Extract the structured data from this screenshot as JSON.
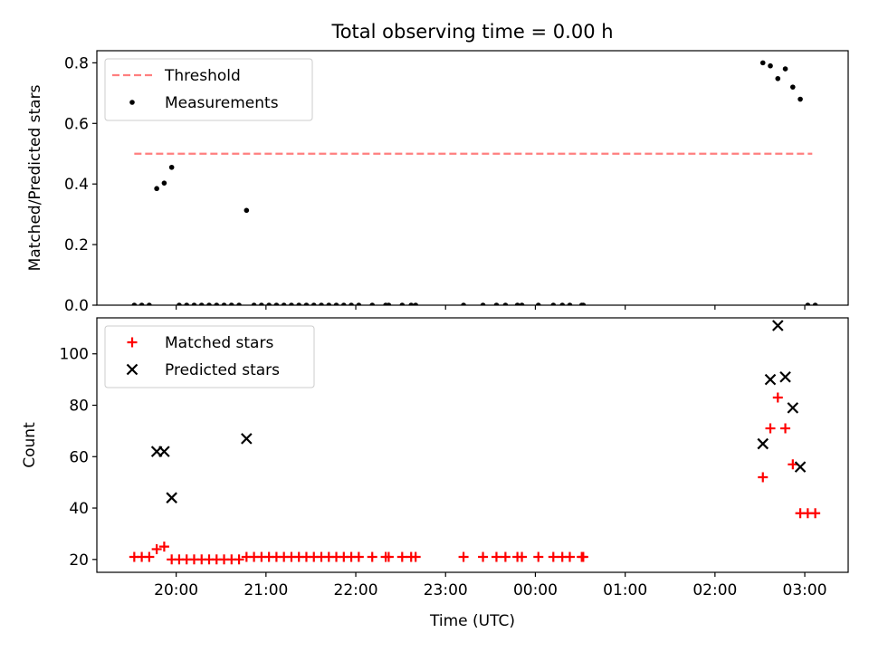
{
  "chart_data": [
    {
      "type": "scatter",
      "title": "Total observing time = 0.00 h",
      "xlabel": "",
      "ylabel": "Matched/Predicted stars",
      "ylim": [
        0,
        0.84
      ],
      "yticks": [
        0.0,
        0.2,
        0.4,
        0.6,
        0.8
      ],
      "ytick_labels": [
        "0.0",
        "0.2",
        "0.4",
        "0.6",
        "0.8"
      ],
      "xlim": [
        "19:07",
        "03:29"
      ],
      "xticks": [
        "20:00",
        "21:00",
        "22:00",
        "23:00",
        "00:00",
        "01:00",
        "02:00",
        "03:00"
      ],
      "xtick_labels_shown": false,
      "legend_position": "top-left",
      "threshold": {
        "name": "Threshold",
        "y": 0.5,
        "x_range": [
          "19:32",
          "03:05"
        ],
        "color": "#ff7f7f",
        "style": "dashed"
      },
      "series": [
        {
          "name": "Measurements",
          "marker": "dot",
          "color": "#000000",
          "points": [
            {
              "x": "19:32",
              "y": 0.0
            },
            {
              "x": "19:37",
              "y": 0.0
            },
            {
              "x": "19:42",
              "y": 0.0
            },
            {
              "x": "19:47",
              "y": 0.385
            },
            {
              "x": "19:52",
              "y": 0.403
            },
            {
              "x": "19:57",
              "y": 0.455
            },
            {
              "x": "20:02",
              "y": 0.0
            },
            {
              "x": "20:07",
              "y": 0.0
            },
            {
              "x": "20:12",
              "y": 0.0
            },
            {
              "x": "20:17",
              "y": 0.0
            },
            {
              "x": "20:22",
              "y": 0.0
            },
            {
              "x": "20:27",
              "y": 0.0
            },
            {
              "x": "20:32",
              "y": 0.0
            },
            {
              "x": "20:37",
              "y": 0.0
            },
            {
              "x": "20:42",
              "y": 0.0
            },
            {
              "x": "20:47",
              "y": 0.313
            },
            {
              "x": "20:52",
              "y": 0.0
            },
            {
              "x": "20:57",
              "y": 0.0
            },
            {
              "x": "21:02",
              "y": 0.0
            },
            {
              "x": "21:07",
              "y": 0.0
            },
            {
              "x": "21:12",
              "y": 0.0
            },
            {
              "x": "21:17",
              "y": 0.0
            },
            {
              "x": "21:22",
              "y": 0.0
            },
            {
              "x": "21:27",
              "y": 0.0
            },
            {
              "x": "21:32",
              "y": 0.0
            },
            {
              "x": "21:37",
              "y": 0.0
            },
            {
              "x": "21:42",
              "y": 0.0
            },
            {
              "x": "21:47",
              "y": 0.0
            },
            {
              "x": "21:52",
              "y": 0.0
            },
            {
              "x": "21:57",
              "y": 0.0
            },
            {
              "x": "22:02",
              "y": 0.0
            },
            {
              "x": "22:11",
              "y": 0.0
            },
            {
              "x": "22:20",
              "y": 0.0
            },
            {
              "x": "22:22",
              "y": 0.0
            },
            {
              "x": "22:31",
              "y": 0.0
            },
            {
              "x": "22:37",
              "y": 0.0
            },
            {
              "x": "22:40",
              "y": 0.0
            },
            {
              "x": "23:12",
              "y": 0.0
            },
            {
              "x": "23:25",
              "y": 0.0
            },
            {
              "x": "23:34",
              "y": 0.0
            },
            {
              "x": "23:40",
              "y": 0.0
            },
            {
              "x": "23:48",
              "y": 0.0
            },
            {
              "x": "23:51",
              "y": 0.0
            },
            {
              "x": "00:02",
              "y": 0.0
            },
            {
              "x": "00:12",
              "y": 0.0
            },
            {
              "x": "00:18",
              "y": 0.0
            },
            {
              "x": "00:23",
              "y": 0.0
            },
            {
              "x": "00:31",
              "y": 0.0
            },
            {
              "x": "00:32",
              "y": 0.0
            },
            {
              "x": "02:32",
              "y": 0.8
            },
            {
              "x": "02:37",
              "y": 0.79
            },
            {
              "x": "02:42",
              "y": 0.748
            },
            {
              "x": "02:47",
              "y": 0.78
            },
            {
              "x": "02:52",
              "y": 0.72
            },
            {
              "x": "02:57",
              "y": 0.68
            },
            {
              "x": "03:02",
              "y": 0.0
            },
            {
              "x": "03:07",
              "y": 0.0
            }
          ]
        }
      ]
    },
    {
      "type": "scatter",
      "title": "",
      "xlabel": "Time (UTC)",
      "ylabel": "Count",
      "ylim": [
        15,
        114
      ],
      "yticks": [
        20,
        40,
        60,
        80,
        100
      ],
      "ytick_labels": [
        "20",
        "40",
        "60",
        "80",
        "100"
      ],
      "xlim": [
        "19:07",
        "03:29"
      ],
      "xticks": [
        "20:00",
        "21:00",
        "22:00",
        "23:00",
        "00:00",
        "01:00",
        "02:00",
        "03:00"
      ],
      "xtick_labels": [
        "20:00",
        "21:00",
        "22:00",
        "23:00",
        "00:00",
        "01:00",
        "02:00",
        "03:00"
      ],
      "legend_position": "top-left",
      "series": [
        {
          "name": "Matched stars",
          "marker": "plus",
          "color": "#ff0000",
          "points": [
            {
              "x": "19:32",
              "y": 21
            },
            {
              "x": "19:37",
              "y": 21
            },
            {
              "x": "19:42",
              "y": 21
            },
            {
              "x": "19:47",
              "y": 24
            },
            {
              "x": "19:52",
              "y": 25
            },
            {
              "x": "19:57",
              "y": 20
            },
            {
              "x": "20:02",
              "y": 20
            },
            {
              "x": "20:07",
              "y": 20
            },
            {
              "x": "20:12",
              "y": 20
            },
            {
              "x": "20:17",
              "y": 20
            },
            {
              "x": "20:22",
              "y": 20
            },
            {
              "x": "20:27",
              "y": 20
            },
            {
              "x": "20:32",
              "y": 20
            },
            {
              "x": "20:37",
              "y": 20
            },
            {
              "x": "20:42",
              "y": 20
            },
            {
              "x": "20:47",
              "y": 21
            },
            {
              "x": "20:52",
              "y": 21
            },
            {
              "x": "20:57",
              "y": 21
            },
            {
              "x": "21:02",
              "y": 21
            },
            {
              "x": "21:07",
              "y": 21
            },
            {
              "x": "21:12",
              "y": 21
            },
            {
              "x": "21:17",
              "y": 21
            },
            {
              "x": "21:22",
              "y": 21
            },
            {
              "x": "21:27",
              "y": 21
            },
            {
              "x": "21:32",
              "y": 21
            },
            {
              "x": "21:37",
              "y": 21
            },
            {
              "x": "21:42",
              "y": 21
            },
            {
              "x": "21:47",
              "y": 21
            },
            {
              "x": "21:52",
              "y": 21
            },
            {
              "x": "21:57",
              "y": 21
            },
            {
              "x": "22:02",
              "y": 21
            },
            {
              "x": "22:11",
              "y": 21
            },
            {
              "x": "22:20",
              "y": 21
            },
            {
              "x": "22:22",
              "y": 21
            },
            {
              "x": "22:31",
              "y": 21
            },
            {
              "x": "22:37",
              "y": 21
            },
            {
              "x": "22:40",
              "y": 21
            },
            {
              "x": "23:12",
              "y": 21
            },
            {
              "x": "23:25",
              "y": 21
            },
            {
              "x": "23:34",
              "y": 21
            },
            {
              "x": "23:40",
              "y": 21
            },
            {
              "x": "23:48",
              "y": 21
            },
            {
              "x": "23:51",
              "y": 21
            },
            {
              "x": "00:02",
              "y": 21
            },
            {
              "x": "00:12",
              "y": 21
            },
            {
              "x": "00:18",
              "y": 21
            },
            {
              "x": "00:23",
              "y": 21
            },
            {
              "x": "00:31",
              "y": 21
            },
            {
              "x": "00:32",
              "y": 21
            },
            {
              "x": "02:32",
              "y": 52
            },
            {
              "x": "02:37",
              "y": 71
            },
            {
              "x": "02:42",
              "y": 83
            },
            {
              "x": "02:47",
              "y": 71
            },
            {
              "x": "02:52",
              "y": 57
            },
            {
              "x": "02:57",
              "y": 38
            },
            {
              "x": "03:02",
              "y": 38
            },
            {
              "x": "03:07",
              "y": 38
            }
          ]
        },
        {
          "name": "Predicted stars",
          "marker": "x",
          "color": "#000000",
          "points": [
            {
              "x": "19:47",
              "y": 62
            },
            {
              "x": "19:52",
              "y": 62
            },
            {
              "x": "19:57",
              "y": 44
            },
            {
              "x": "20:47",
              "y": 67
            },
            {
              "x": "02:32",
              "y": 65
            },
            {
              "x": "02:37",
              "y": 90
            },
            {
              "x": "02:42",
              "y": 111
            },
            {
              "x": "02:47",
              "y": 91
            },
            {
              "x": "02:52",
              "y": 79
            },
            {
              "x": "02:57",
              "y": 56
            }
          ]
        }
      ]
    }
  ]
}
